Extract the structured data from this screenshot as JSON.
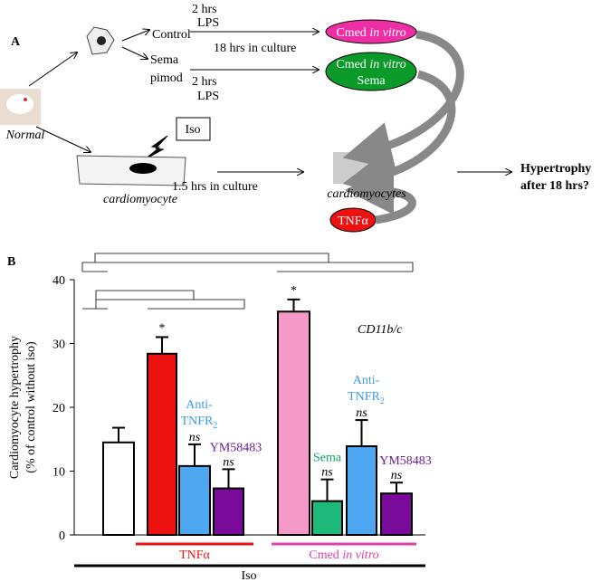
{
  "panel_a": {
    "label": "A",
    "lps_top": [
      "2 hrs",
      "LPS"
    ],
    "control": "Control",
    "sema_pimod": [
      "Sema",
      "pimod"
    ],
    "lps_bottom": [
      "2 hrs",
      "LPS"
    ],
    "culture_18": "18 hrs in culture",
    "cmed_pink": [
      "Cmed ",
      "in vitro"
    ],
    "cmed_green": [
      "Cmed ",
      "in vitro",
      "Sema"
    ],
    "normal": "Normal",
    "iso": "Iso",
    "cardiomyocyte": "cardiomyocyte",
    "culture_15": "1.5 hrs in culture",
    "cardiomyocytes": "cardiomyocytes",
    "tnfa": "TNFα",
    "hypertrophy": [
      "Hypertrophy",
      "after 18 hrs?"
    ]
  },
  "chart_data": {
    "type": "bar",
    "panel_label": "B",
    "ylabel": [
      "Cardiomyocyte hypertrophy",
      "(% of control without iso)"
    ],
    "values": [
      14.5,
      28.4,
      10.8,
      7.3,
      35.0,
      5.3,
      13.9,
      6.5
    ],
    "errors": [
      2.3,
      2.6,
      3.4,
      3.0,
      1.9,
      3.4,
      4.1,
      1.7
    ],
    "colors": [
      "#ffffff",
      "#ee1111",
      "#4da6f0",
      "#7a0a9a",
      "#f59ac8",
      "#1db87a",
      "#4da6f0",
      "#7a0a9a"
    ],
    "ylim": [
      0,
      40
    ],
    "yticks": [
      0,
      10,
      20,
      30,
      40
    ],
    "annotation": "CD11b/c",
    "star": "*",
    "anti": [
      "Anti-",
      "TNFR",
      "2"
    ],
    "ym": "YM58483",
    "sema": "Sema",
    "ns": "ns",
    "groups": {
      "tnfa": "TNFα",
      "cmed": [
        "Cmed ",
        "in vitro"
      ],
      "iso": "Iso"
    }
  }
}
